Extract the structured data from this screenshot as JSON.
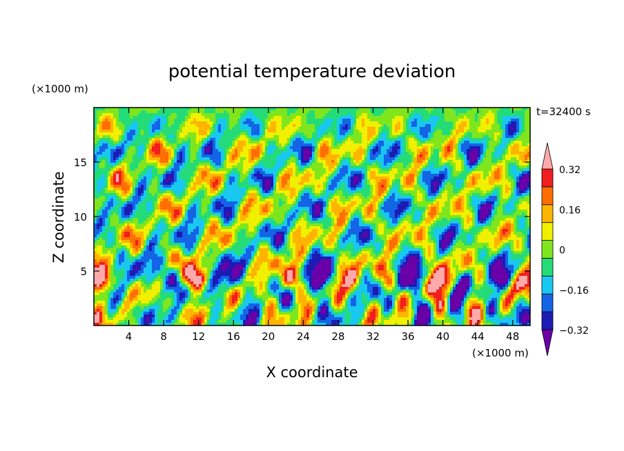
{
  "chart_data": {
    "type": "heatmap",
    "title": "potential temperature deviation",
    "xlabel": "X coordinate",
    "ylabel": "Z coordinate",
    "x_unit": "(×1000 m)",
    "y_unit": "(×1000 m)",
    "time_label": "t=32400 s",
    "xlim": [
      0,
      50
    ],
    "ylim": [
      0,
      20
    ],
    "x_ticks": [
      4,
      8,
      12,
      16,
      20,
      24,
      28,
      32,
      36,
      40,
      44,
      48
    ],
    "y_ticks": [
      5,
      10,
      15
    ],
    "colorbar": {
      "levels": [
        -0.4,
        -0.32,
        -0.24,
        -0.16,
        -0.08,
        0,
        0.08,
        0.16,
        0.24,
        0.32,
        0.4
      ],
      "colors": [
        "#6a00a8",
        "#1c1cb5",
        "#1464e6",
        "#19c8f0",
        "#23dc78",
        "#7fe61e",
        "#f0f000",
        "#ffb400",
        "#ff6e00",
        "#f01e1e",
        "#ffaaaa"
      ],
      "tick_labels": [
        "0.32",
        "0.16",
        "0",
        "−0.16",
        "−0.32"
      ],
      "tick_values": [
        0.32,
        0.16,
        0,
        -0.16,
        -0.32
      ],
      "extend": "both"
    }
  }
}
